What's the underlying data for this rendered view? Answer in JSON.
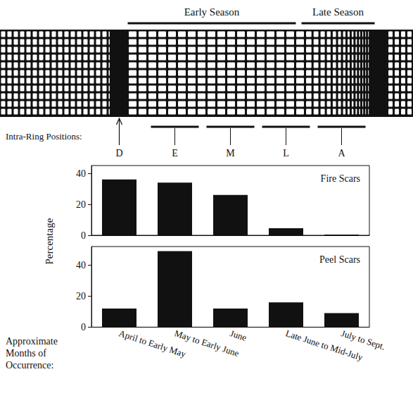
{
  "diagram": {
    "season_labels": [
      "Early Season",
      "Late Season"
    ],
    "positions_title": "Intra-Ring Positions:",
    "positions": [
      "D",
      "E",
      "M",
      "L",
      "A"
    ]
  },
  "y_axis_title": "Percentage",
  "x_axis_title": "Approximate Months of Occurrence:",
  "chart_data": [
    {
      "type": "bar",
      "title": "Fire Scars",
      "categories": [
        "April to Early May",
        "May to Early June",
        "June",
        "Late June to Mid-July",
        "July to Sept."
      ],
      "values": [
        36,
        34,
        26,
        4.5,
        0.5
      ],
      "color": "#111111",
      "ylim": [
        0,
        45
      ],
      "yticks": [
        0,
        20,
        40
      ],
      "grid": false,
      "tick_labels": "y"
    },
    {
      "type": "bar",
      "title": "Peel Scars",
      "categories": [
        "April to Early May",
        "May to Early June",
        "June",
        "Late June to Mid-July",
        "July to Sept."
      ],
      "values": [
        12,
        49,
        12,
        16,
        9
      ],
      "color": "#111111",
      "ylim": [
        0,
        52
      ],
      "yticks": [
        0,
        20,
        40
      ],
      "grid": false
    }
  ]
}
